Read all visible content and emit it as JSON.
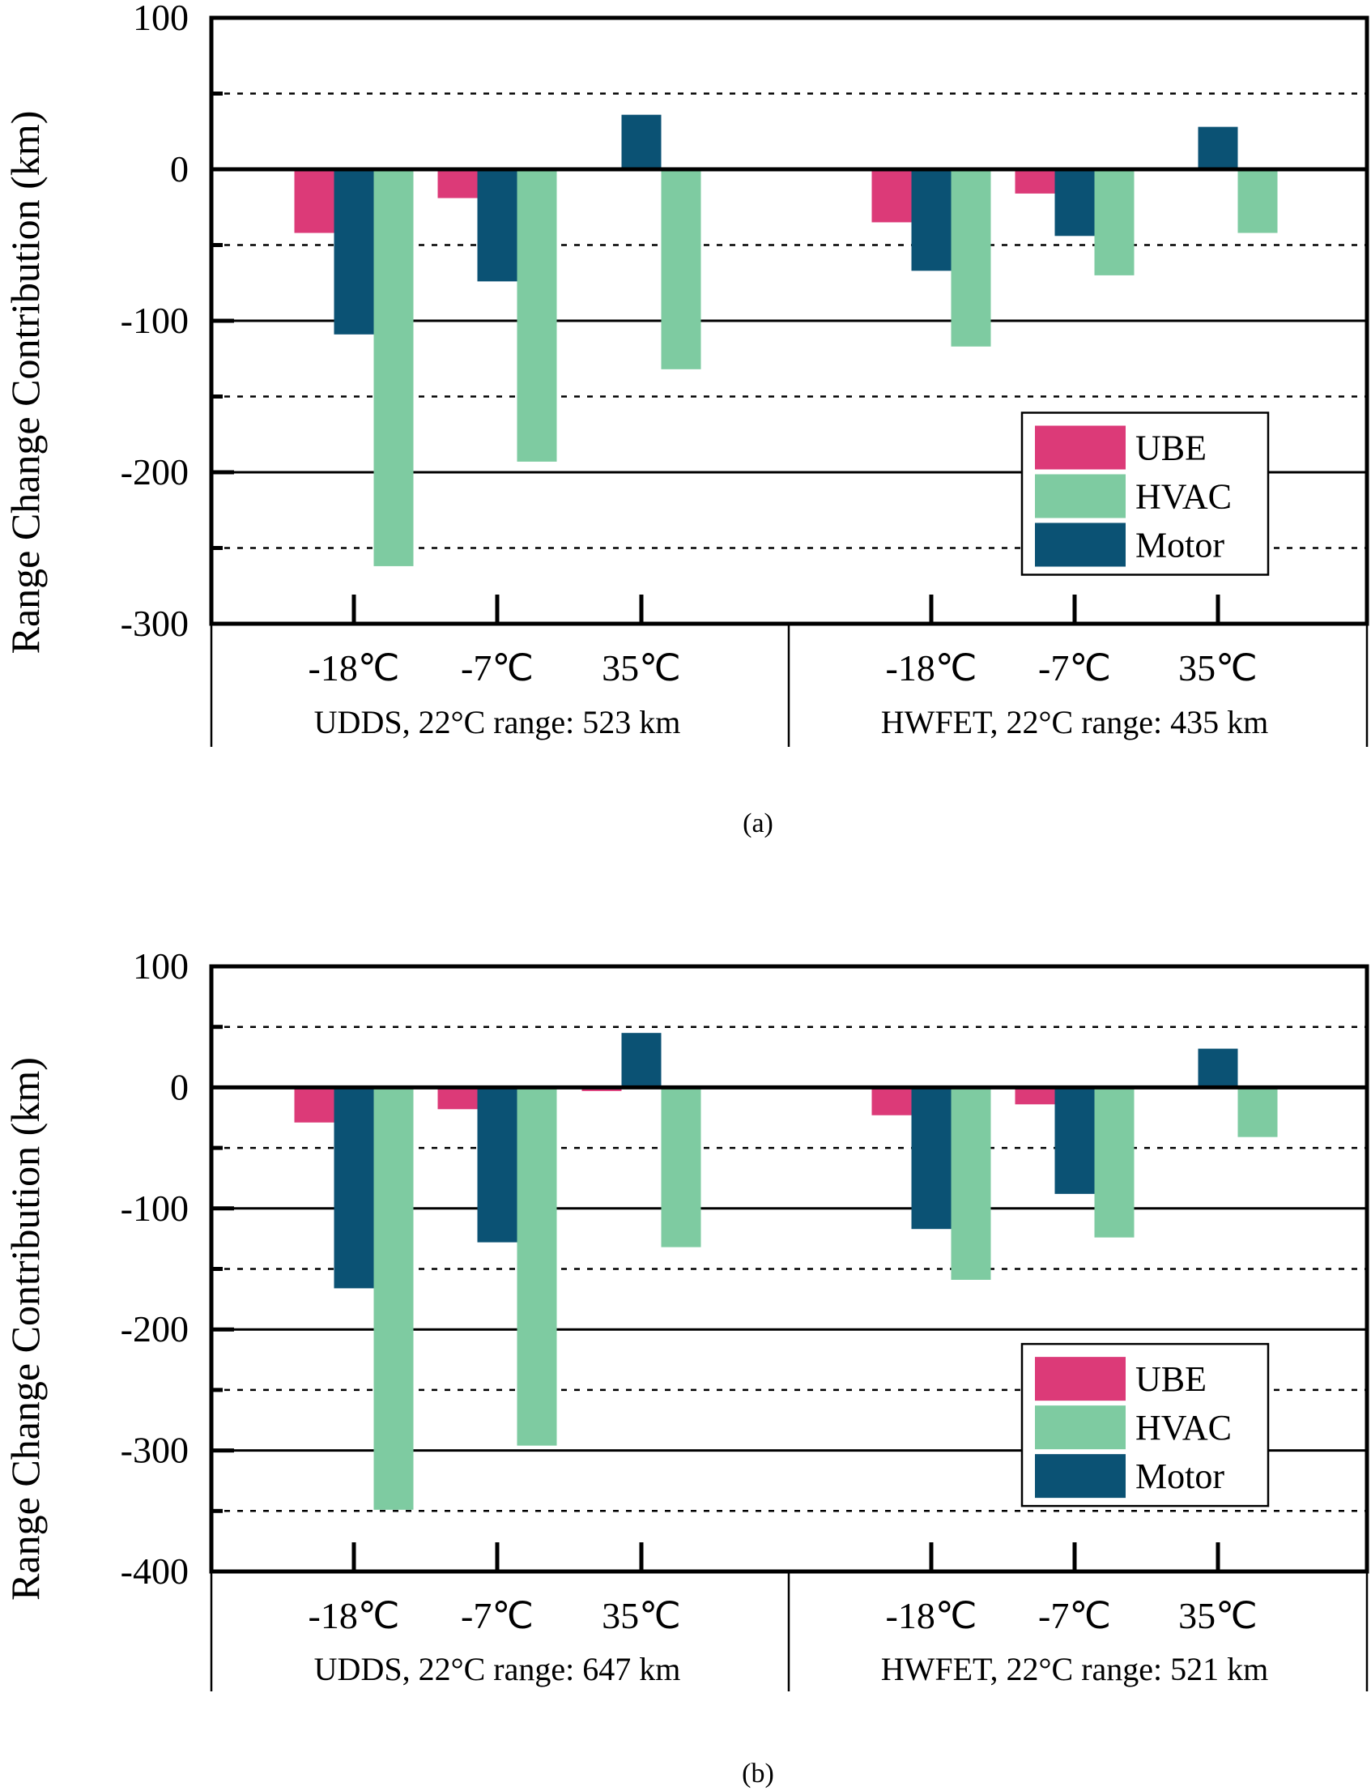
{
  "chart_data": [
    {
      "type": "bar",
      "caption": "(a)",
      "ylabel": "Range Change Contribution (km)",
      "xlabel": "",
      "ylim": [
        -300,
        100
      ],
      "yticks": [
        "100",
        "0",
        "-100",
        "-200",
        "-300"
      ],
      "ytick_values": [
        100,
        0,
        -100,
        -200,
        -300
      ],
      "grid": "solid at major ticks, dotted at half ticks",
      "legend": {
        "position": "lower-right",
        "entries": [
          "UBE",
          "HVAC",
          "Motor"
        ]
      },
      "groups": [
        {
          "label": "UDDS, 22°C range: 523 km",
          "categories": [
            "-18℃",
            "-7℃",
            "35℃"
          ],
          "series": [
            {
              "name": "UBE",
              "values": [
                -42,
                -19,
                0
              ]
            },
            {
              "name": "Motor",
              "values": [
                -109,
                -74,
                36
              ]
            },
            {
              "name": "HVAC",
              "values": [
                -262,
                -193,
                -132
              ]
            }
          ]
        },
        {
          "label": "HWFET, 22°C range: 435 km",
          "categories": [
            "-18℃",
            "-7℃",
            "35℃"
          ],
          "series": [
            {
              "name": "UBE",
              "values": [
                -35,
                -16,
                0
              ]
            },
            {
              "name": "Motor",
              "values": [
                -67,
                -44,
                28
              ]
            },
            {
              "name": "HVAC",
              "values": [
                -117,
                -70,
                -42
              ]
            }
          ]
        }
      ]
    },
    {
      "type": "bar",
      "caption": "(b)",
      "ylabel": "Range Change Contribution (km)",
      "xlabel": "",
      "ylim": [
        -400,
        100
      ],
      "yticks": [
        "100",
        "0",
        "-100",
        "-200",
        "-300",
        "-400"
      ],
      "ytick_values": [
        100,
        0,
        -100,
        -200,
        -300,
        -400
      ],
      "grid": "solid at major ticks, dotted at half ticks",
      "legend": {
        "position": "lower-right",
        "entries": [
          "UBE",
          "HVAC",
          "Motor"
        ]
      },
      "groups": [
        {
          "label": "UDDS, 22°C range: 647 km",
          "categories": [
            "-18℃",
            "-7℃",
            "35℃"
          ],
          "series": [
            {
              "name": "UBE",
              "values": [
                -29,
                -18,
                -3
              ]
            },
            {
              "name": "Motor",
              "values": [
                -166,
                -128,
                45
              ]
            },
            {
              "name": "HVAC",
              "values": [
                -349,
                -296,
                -132
              ]
            }
          ]
        },
        {
          "label": "HWFET, 22°C range: 521 km",
          "categories": [
            "-18℃",
            "-7℃",
            "35℃"
          ],
          "series": [
            {
              "name": "UBE",
              "values": [
                -23,
                -14,
                0
              ]
            },
            {
              "name": "Motor",
              "values": [
                -117,
                -88,
                32
              ]
            },
            {
              "name": "HVAC",
              "values": [
                -159,
                -124,
                -41
              ]
            }
          ]
        }
      ]
    }
  ],
  "colors": {
    "UBE": "#dc3a78",
    "HVAC": "#7ecba1",
    "Motor": "#0b5274"
  }
}
